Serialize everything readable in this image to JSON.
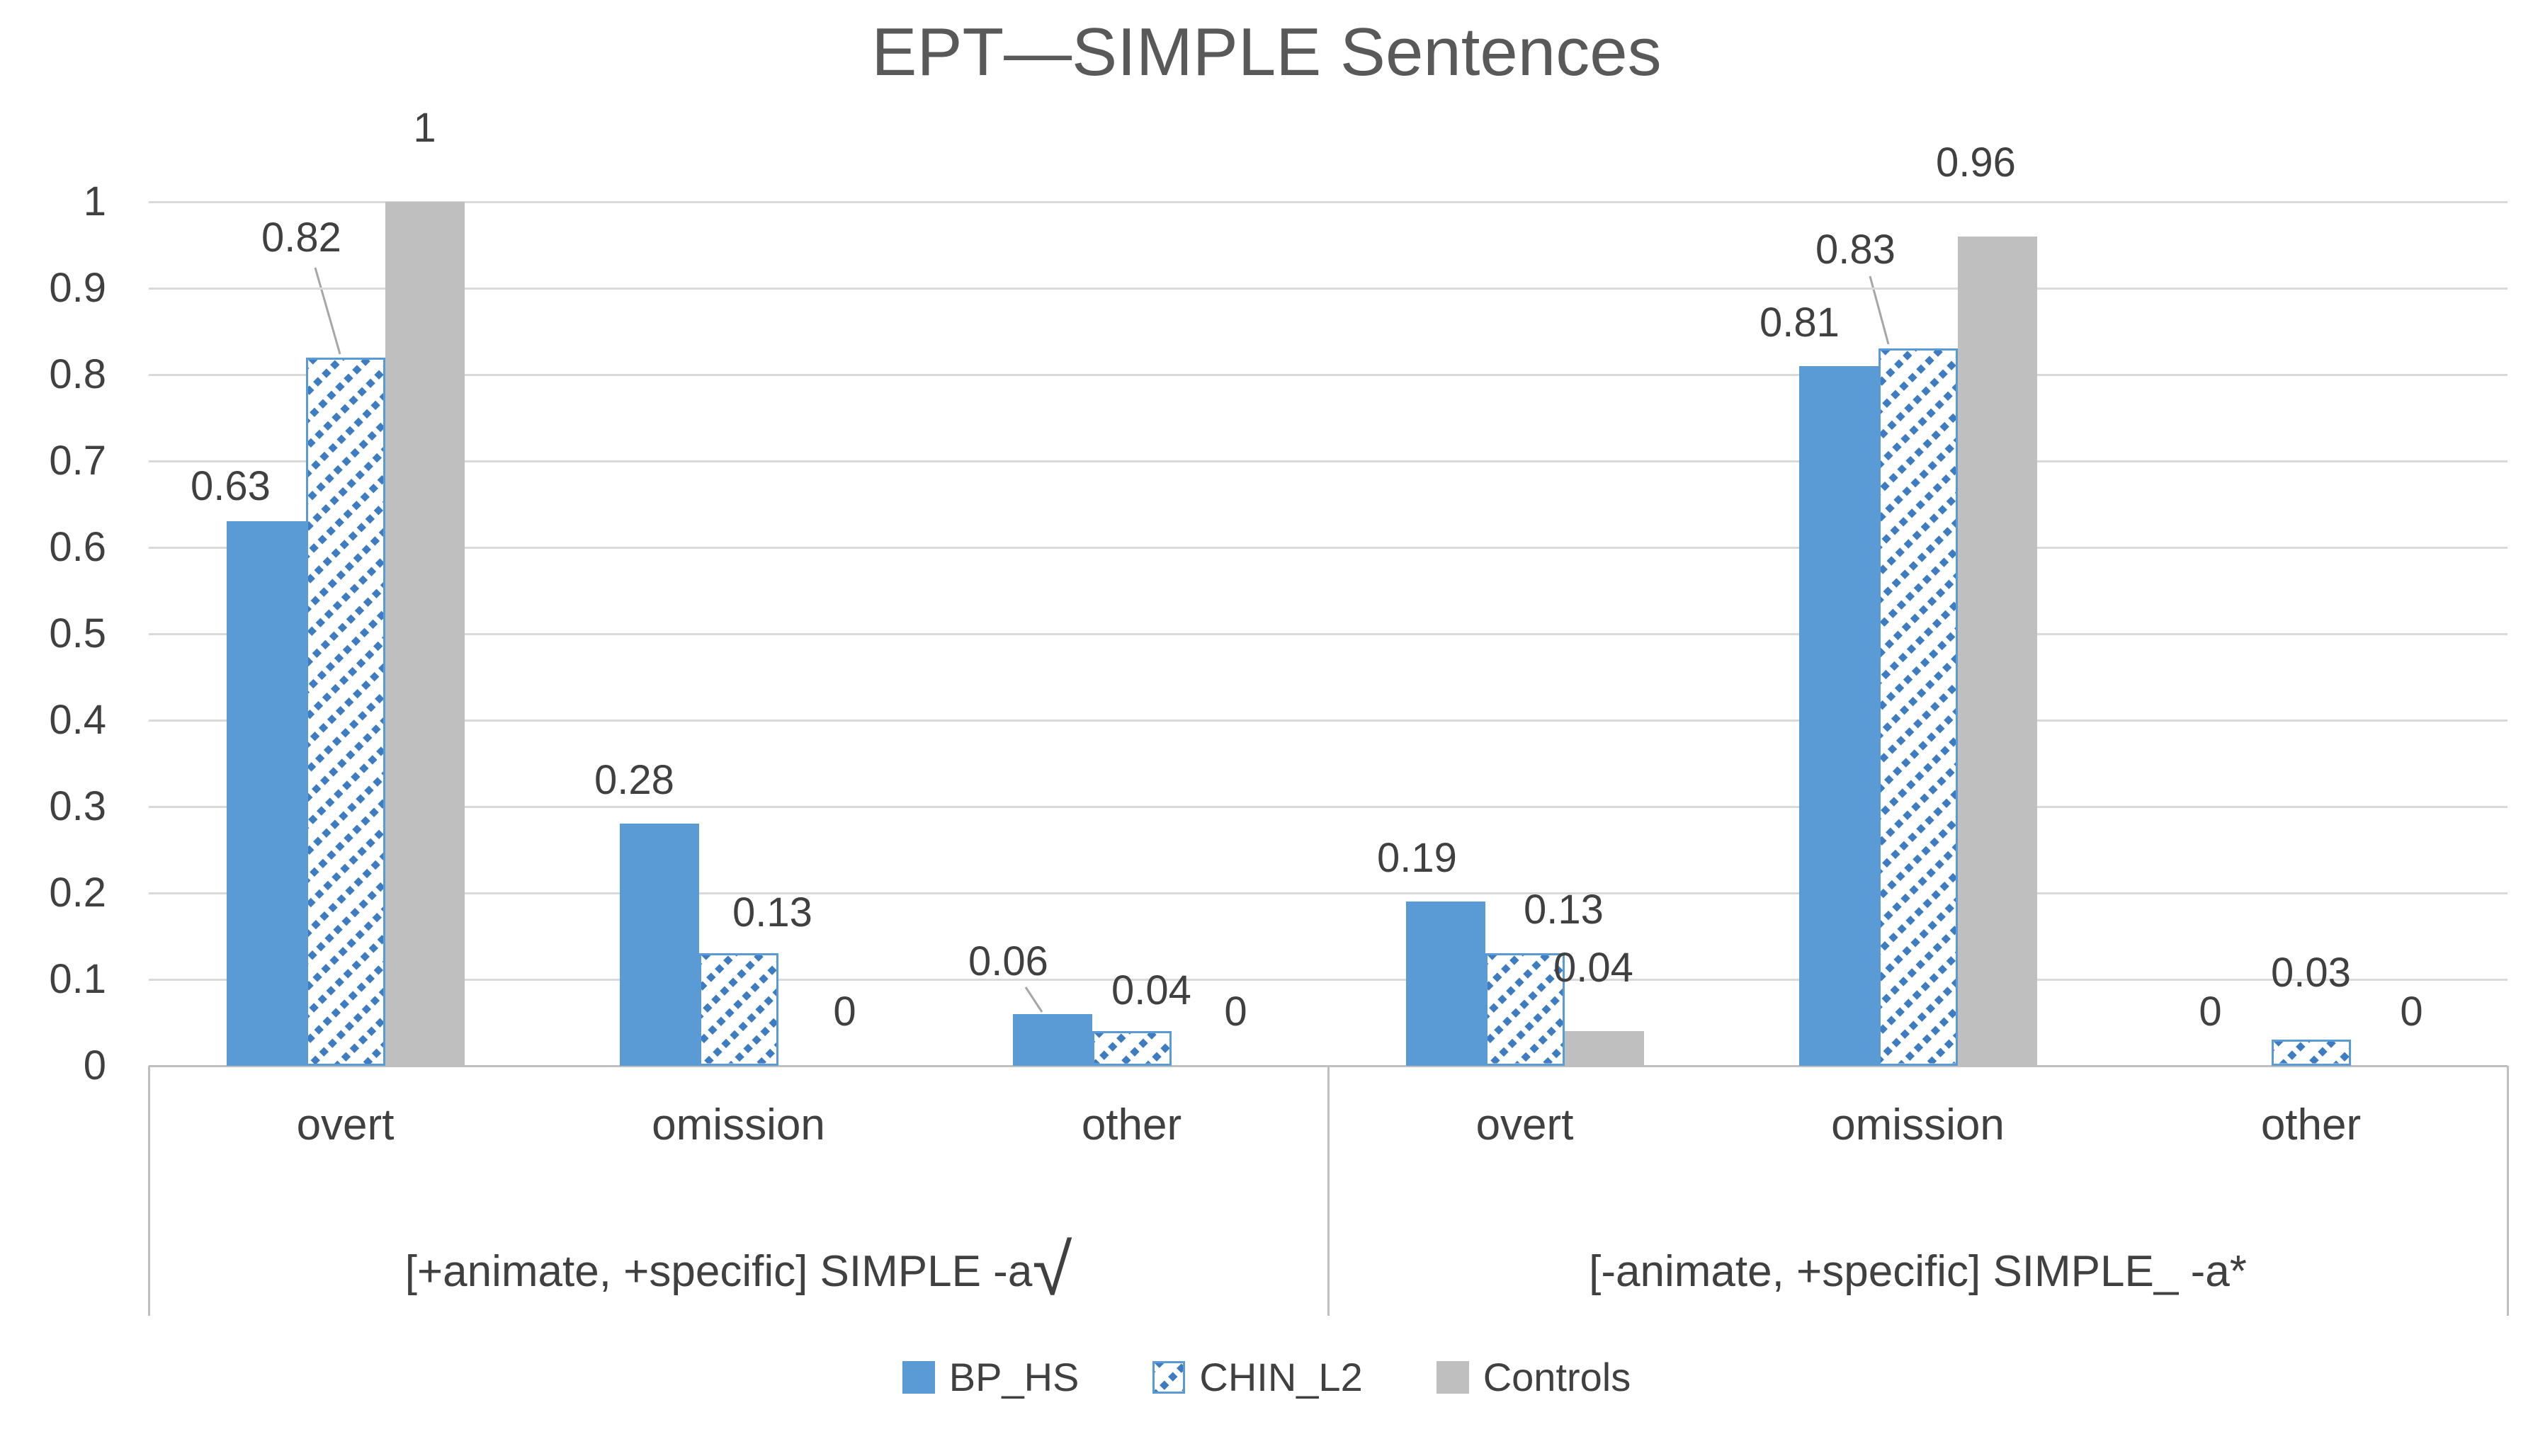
{
  "title": "EPT—SIMPLE Sentences",
  "legend": {
    "items": [
      "BP_HS",
      "CHIN_L2",
      "Controls"
    ]
  },
  "chart_data": {
    "type": "bar",
    "title": "EPT—SIMPLE Sentences",
    "xlabel": "",
    "ylabel": "",
    "ylim": [
      0,
      1
    ],
    "grid": true,
    "legend_position": "bottom",
    "yticks": [
      "0",
      "0.1",
      "0.2",
      "0.3",
      "0.4",
      "0.5",
      "0.6",
      "0.7",
      "0.8",
      "0.9",
      "1"
    ],
    "groups": [
      {
        "label": "[+animate, +specific] SIMPLE -a",
        "label_suffix": "√",
        "categories": [
          "overt",
          "omission",
          "other"
        ]
      },
      {
        "label": "[-animate, +specific] SIMPLE_ -a*",
        "label_suffix": "",
        "categories": [
          "overt",
          "omission",
          "other"
        ]
      }
    ],
    "series": [
      {
        "name": "BP_HS",
        "pattern": "solid",
        "color": "#5B9BD5",
        "values": [
          [
            0.63,
            0.28,
            0.06
          ],
          [
            0.19,
            0.81,
            0
          ]
        ],
        "labels": [
          [
            "0.63",
            "0.28",
            "0.06"
          ],
          [
            "0.19",
            "0.81",
            "0"
          ]
        ]
      },
      {
        "name": "CHIN_L2",
        "pattern": "diagonal-hatch",
        "color": "#5B9BD5",
        "hatch_dot_color": "#3E7CC1",
        "values": [
          [
            0.82,
            0.13,
            0.04
          ],
          [
            0.13,
            0.83,
            0.03
          ]
        ],
        "labels": [
          [
            "0.82",
            "0.13",
            "0.04"
          ],
          [
            "0.13",
            "0.83",
            "0.03"
          ]
        ]
      },
      {
        "name": "Controls",
        "pattern": "solid",
        "color": "#BFBFBF",
        "values": [
          [
            1,
            0,
            0
          ],
          [
            0.04,
            0.96,
            0
          ]
        ],
        "labels": [
          [
            "1",
            "0",
            "0"
          ],
          [
            "0.04",
            "0.96",
            "0"
          ]
        ]
      }
    ],
    "colors": {
      "bp_hs": "#5B9BD5",
      "chin_l2_hatch": "#3E7CC1",
      "controls": "#BFBFBF",
      "gridline": "#D9D9D9",
      "axis": "#BFBFBF",
      "text": "#404040",
      "title_text": "#595959",
      "leader_line": "#A6A6A6"
    }
  }
}
